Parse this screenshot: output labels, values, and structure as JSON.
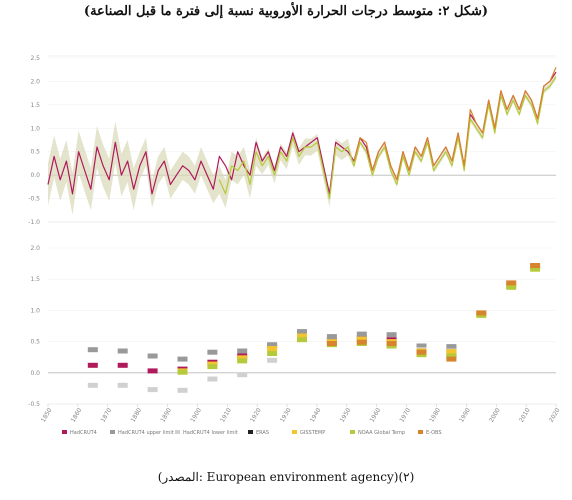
{
  "title": "(شكل ٢: متوسط درجات الحرارة الأوروبية نسبة إلى فترة ما قبل الصناعة)",
  "source": "(المصدر: European environment agency)(٢)",
  "colors": {
    "hadcrut4": "#b01a5a",
    "upper": "#999999",
    "lower": "#d0d0d0",
    "eras": "#222222",
    "gisstemp": "#f2c42e",
    "noaa": "#b6c93a",
    "eobs": "#d6852e",
    "band": "#d9d8b8"
  },
  "chart_data": [
    {
      "type": "line",
      "ylim": [
        -1.0,
        2.5
      ],
      "yticks": [
        "-1.0",
        "-0.5",
        "0.0",
        "0.5",
        "1.0",
        "1.5",
        "2.0",
        "2.5"
      ],
      "xlim": [
        1850,
        2016
      ],
      "x": [
        1850,
        1852,
        1854,
        1856,
        1858,
        1860,
        1862,
        1864,
        1866,
        1868,
        1870,
        1872,
        1874,
        1876,
        1878,
        1880,
        1882,
        1884,
        1886,
        1888,
        1890,
        1892,
        1894,
        1896,
        1898,
        1900,
        1902,
        1904,
        1906,
        1908,
        1910,
        1912,
        1914,
        1916,
        1918,
        1920,
        1922,
        1924,
        1926,
        1928,
        1930,
        1932,
        1934,
        1936,
        1938,
        1940,
        1942,
        1944,
        1946,
        1948,
        1950,
        1952,
        1954,
        1956,
        1958,
        1960,
        1962,
        1964,
        1966,
        1968,
        1970,
        1972,
        1974,
        1976,
        1978,
        1980,
        1982,
        1984,
        1986,
        1988,
        1990,
        1992,
        1994,
        1996,
        1998,
        2000,
        2002,
        2004,
        2006,
        2008,
        2010,
        2012,
        2014,
        2016
      ],
      "series": [
        {
          "key": "hadcrut4",
          "values": [
            -0.2,
            0.4,
            -0.1,
            0.3,
            -0.4,
            0.5,
            0.1,
            -0.3,
            0.6,
            0.2,
            -0.1,
            0.7,
            0.0,
            0.3,
            -0.3,
            0.2,
            0.5,
            -0.4,
            0.1,
            0.3,
            -0.2,
            0.0,
            0.2,
            0.1,
            -0.1,
            0.3,
            0.0,
            -0.3,
            0.4,
            0.2,
            -0.1,
            0.5,
            0.2,
            0.0,
            0.7,
            0.3,
            0.5,
            0.1,
            0.6,
            0.4,
            0.9,
            0.5,
            0.6,
            0.7,
            0.8,
            0.2,
            -0.4,
            0.7,
            0.6,
            0.5,
            0.3,
            0.8,
            0.6,
            0.1,
            0.5,
            0.7,
            0.2,
            -0.1,
            0.5,
            0.1,
            0.6,
            0.4,
            0.8,
            0.2,
            0.4,
            0.6,
            0.3,
            0.9,
            0.2,
            1.3,
            1.1,
            0.9,
            1.6,
            1.0,
            1.8,
            1.4,
            1.7,
            1.4,
            1.8,
            1.6,
            1.2,
            1.9,
            2.0,
            2.2
          ]
        },
        {
          "key": "noaa",
          "values": [
            null,
            null,
            null,
            null,
            null,
            null,
            null,
            null,
            null,
            null,
            null,
            null,
            null,
            null,
            null,
            null,
            null,
            null,
            null,
            null,
            null,
            null,
            null,
            null,
            null,
            null,
            null,
            null,
            -0.1,
            -0.4,
            0.2,
            0.1,
            0.3,
            -0.2,
            0.5,
            0.2,
            0.4,
            0.0,
            0.5,
            0.3,
            0.8,
            0.4,
            0.6,
            0.6,
            0.7,
            0.1,
            -0.5,
            0.6,
            0.5,
            0.6,
            0.2,
            0.7,
            0.5,
            0.0,
            0.4,
            0.6,
            0.1,
            -0.2,
            0.4,
            0.0,
            0.5,
            0.3,
            0.7,
            0.1,
            0.3,
            0.5,
            0.2,
            0.8,
            0.1,
            1.2,
            1.0,
            0.8,
            1.5,
            0.9,
            1.7,
            1.3,
            1.6,
            1.3,
            1.7,
            1.5,
            1.1,
            1.8,
            1.9,
            2.1
          ]
        },
        {
          "key": "eobs",
          "values": [
            null,
            null,
            null,
            null,
            null,
            null,
            null,
            null,
            null,
            null,
            null,
            null,
            null,
            null,
            null,
            null,
            null,
            null,
            null,
            null,
            null,
            null,
            null,
            null,
            null,
            null,
            null,
            null,
            null,
            null,
            null,
            null,
            null,
            null,
            null,
            null,
            null,
            null,
            null,
            null,
            null,
            null,
            null,
            null,
            null,
            null,
            null,
            null,
            null,
            null,
            0.3,
            0.8,
            0.7,
            0.1,
            0.5,
            0.7,
            0.2,
            -0.1,
            0.5,
            0.1,
            0.6,
            0.4,
            0.8,
            0.2,
            0.4,
            0.6,
            0.3,
            0.9,
            0.2,
            1.4,
            1.1,
            0.9,
            1.6,
            1.0,
            1.8,
            1.4,
            1.7,
            1.4,
            1.8,
            1.6,
            1.2,
            1.9,
            2.0,
            2.3
          ]
        }
      ]
    },
    {
      "type": "scatter",
      "ylim": [
        -0.5,
        2.0
      ],
      "yticks": [
        "-0.5",
        "0.0",
        "0.5",
        "1.0",
        "1.5",
        "2.0"
      ],
      "decades": [
        1850,
        1860,
        1870,
        1880,
        1890,
        1900,
        1910,
        1920,
        1930,
        1940,
        1950,
        1960,
        1970,
        1980,
        1990,
        2000,
        2010,
        2016
      ],
      "series": [
        {
          "key": "hadcrut4",
          "name": "HadCRUT4",
          "values": [
            null,
            0.12,
            0.12,
            0.03,
            0.06,
            0.17,
            0.27,
            0.43,
            0.6,
            0.52,
            0.56,
            0.53,
            0.4,
            0.38,
            null,
            null,
            null
          ]
        },
        {
          "key": "upper",
          "name": "HadCRUT4 upper limit",
          "values": [
            null,
            0.37,
            0.35,
            0.27,
            0.22,
            0.33,
            0.35,
            0.45,
            0.66,
            0.58,
            0.62,
            0.61,
            0.43,
            0.42,
            null,
            null,
            null
          ]
        },
        {
          "key": "lower",
          "name": "HadCRUT4 lower limit",
          "values": [
            null,
            -0.2,
            -0.2,
            -0.27,
            -0.28,
            -0.1,
            -0.03,
            0.2,
            0.56,
            0.46,
            0.52,
            0.45,
            0.37,
            0.35,
            null,
            null,
            null
          ]
        },
        {
          "key": "eras",
          "name": "ERAS",
          "values": [
            null,
            null,
            null,
            null,
            null,
            null,
            null,
            null,
            null,
            null,
            null,
            null,
            null,
            0.28,
            null,
            null,
            null
          ]
        },
        {
          "key": "gisstemp",
          "name": "GISSTEMP",
          "values": [
            null,
            null,
            null,
            null,
            0.03,
            0.14,
            0.24,
            0.39,
            0.59,
            0.5,
            0.54,
            0.5,
            0.35,
            0.34,
            0.94,
            1.4,
            1.7
          ]
        },
        {
          "key": "noaa",
          "name": "NOAA Global Temp",
          "values": [
            null,
            null,
            null,
            null,
            0.01,
            0.1,
            0.19,
            0.31,
            0.53,
            0.45,
            0.47,
            0.43,
            0.29,
            0.27,
            0.92,
            1.37,
            1.66
          ]
        },
        {
          "key": "eobs",
          "name": "E-OBS",
          "values": [
            null,
            null,
            null,
            null,
            null,
            null,
            null,
            null,
            null,
            0.47,
            0.49,
            0.47,
            0.33,
            0.22,
            0.96,
            1.44,
            1.72
          ]
        }
      ],
      "xticks": [
        "1850",
        "1860",
        "1870",
        "1880",
        "1890",
        "1900",
        "1910",
        "1920",
        "1930",
        "1940",
        "1950",
        "1960",
        "1970",
        "1980",
        "1990",
        "2000",
        "2010",
        "2020"
      ]
    }
  ]
}
